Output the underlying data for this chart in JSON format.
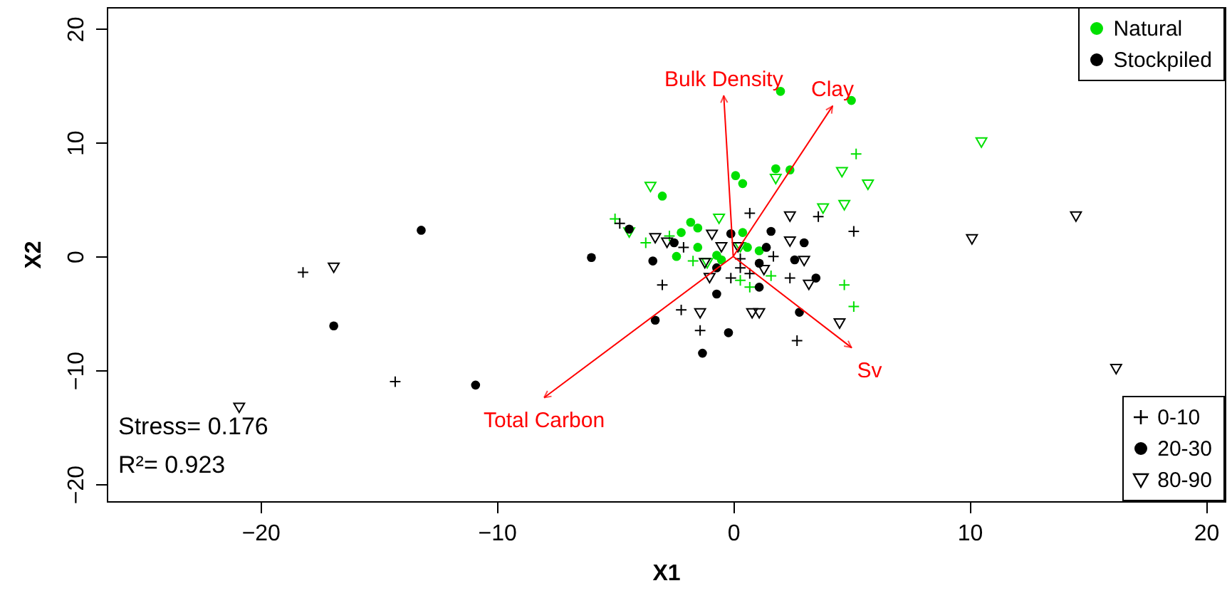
{
  "chart_data": {
    "type": "scatter",
    "xlabel": "X1",
    "ylabel": "X2",
    "xlim": [
      -26.5,
      20.8
    ],
    "ylim": [
      -21.5,
      21.9
    ],
    "xticks": [
      -20,
      -10,
      0,
      10,
      20
    ],
    "yticks": [
      -20,
      -10,
      0,
      10,
      20
    ],
    "grid": false,
    "annotations": [
      "Stress= 0.176",
      "R²= 0.923",
      "Natural",
      "Stockpiled",
      "0-10",
      "20-30",
      "80-90",
      {
        "text": "Bulk Density",
        "x": -0.4,
        "y": 14.1
      },
      {
        "text": "Clay",
        "x": 4.2,
        "y": 13.2
      },
      {
        "text": "Sv",
        "x": 5.0,
        "y": -8.0
      },
      {
        "text": "Total Carbon",
        "x": -8.0,
        "y": -12.4
      }
    ],
    "series": [
      {
        "color": "#00e000",
        "marker": "cross",
        "x": [
          5.2,
          -5.0,
          -3.7,
          -2.7,
          -1.7,
          0.3,
          0.7,
          1.6,
          4.7,
          5.1
        ],
        "values": [
          9.0,
          3.3,
          1.2,
          1.8,
          -0.4,
          -2.1,
          -2.7,
          -1.7,
          -2.5,
          -4.4
        ]
      },
      {
        "color": "#00e000",
        "marker": "circle",
        "x": [
          2.0,
          5.0,
          0.1,
          0.4,
          1.8,
          2.4,
          -3.0,
          -1.8,
          -1.5,
          -2.2,
          -1.5,
          0.4,
          0.6,
          -0.7,
          -2.4,
          -0.5,
          1.1
        ],
        "values": [
          14.5,
          13.7,
          7.1,
          6.4,
          7.7,
          7.6,
          5.3,
          3.0,
          2.5,
          2.1,
          0.8,
          2.1,
          0.8,
          0.1,
          0,
          -0.3,
          0.5
        ]
      },
      {
        "color": "#00e000",
        "marker": "triangle",
        "x": [
          10.5,
          4.6,
          5.7,
          4.7,
          3.8,
          1.8,
          -3.5,
          -0.6,
          -4.4,
          0.3,
          -1.1
        ],
        "values": [
          10.0,
          7.4,
          6.3,
          4.5,
          4.2,
          6.8,
          6.1,
          3.3,
          2.1,
          0.8,
          -0.6
        ]
      },
      {
        "color": "#000000",
        "marker": "cross",
        "x": [
          -18.2,
          -14.3,
          -4.8,
          0.7,
          3.6,
          5.1,
          -2.1,
          1.7,
          0.3,
          0.3,
          0.7,
          -0.1,
          2.4,
          -3.0,
          -2.2,
          -1.4,
          2.7
        ],
        "values": [
          -1.4,
          -11.0,
          2.9,
          3.8,
          3.5,
          2.2,
          0.8,
          0,
          -0.2,
          -1.0,
          -1.5,
          -1.9,
          -1.9,
          -2.5,
          -4.7,
          -6.5,
          -7.4
        ]
      },
      {
        "color": "#000000",
        "marker": "circle",
        "x": [
          -13.2,
          -16.9,
          -6.0,
          -10.9,
          -4.4,
          -3.4,
          -2.5,
          -0.1,
          1.6,
          1.4,
          3.0,
          2.6,
          3.5,
          1.1,
          -0.7,
          -0.7,
          -3.3,
          -0.2,
          2.8,
          1.1,
          -1.3
        ],
        "values": [
          2.3,
          -6.1,
          -0.1,
          -11.3,
          2.4,
          -0.4,
          1.2,
          2.0,
          2.2,
          0.8,
          1.2,
          -0.3,
          -1.9,
          -0.6,
          -1.0,
          -3.3,
          -5.6,
          -6.7,
          -4.9,
          -2.7,
          -8.5
        ]
      },
      {
        "color": "#000000",
        "marker": "triangle",
        "x": [
          -16.9,
          -20.9,
          14.5,
          10.1,
          16.2,
          2.4,
          -3.3,
          -2.8,
          -0.9,
          -0.5,
          0.2,
          -1.2,
          -1.0,
          1.3,
          3.0,
          3.2,
          -1.4,
          0.8,
          1.1,
          2.4,
          4.5
        ],
        "values": [
          -1.0,
          -13.3,
          3.5,
          1.5,
          -9.9,
          3.5,
          1.6,
          1.2,
          1.9,
          0.8,
          0.8,
          -0.6,
          -1.9,
          -1.2,
          -0.4,
          -2.5,
          -5.0,
          -5.0,
          -5.0,
          1.3,
          -5.9
        ]
      },
      {
        "type": "line",
        "color": "#ff0000",
        "marker": "none",
        "x": [
          0,
          -0.4,
          0,
          4.2,
          0,
          5.0,
          0,
          -8.0
        ],
        "values": [
          0,
          14.1,
          0,
          13.2,
          0,
          -8.0,
          0,
          -12.4
        ]
      }
    ]
  }
}
